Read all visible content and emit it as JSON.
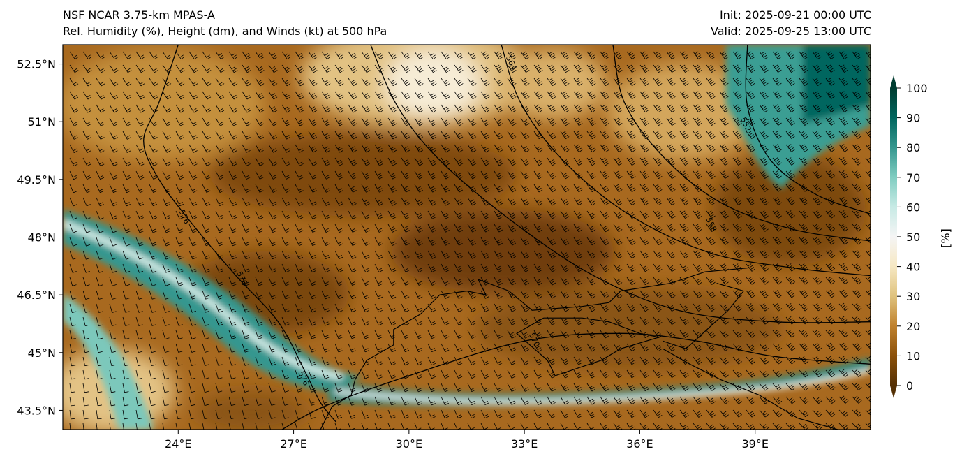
{
  "header": {
    "model": "NSF NCAR 3.75-km MPAS-A",
    "product": "Rel. Humidity (%), Height (dm), and Winds (kt) at 500 hPa",
    "init": "Init: 2025-09-21 00:00 UTC",
    "valid": "Valid: 2025-09-25 13:00 UTC"
  },
  "map": {
    "lon_range": [
      21,
      42
    ],
    "lat_range": [
      43,
      53
    ],
    "lon_ticks": [
      {
        "value": 24,
        "label": "24°E"
      },
      {
        "value": 27,
        "label": "27°E"
      },
      {
        "value": 30,
        "label": "30°E"
      },
      {
        "value": 33,
        "label": "33°E"
      },
      {
        "value": 36,
        "label": "36°E"
      },
      {
        "value": 39,
        "label": "39°E"
      }
    ],
    "lat_ticks": [
      {
        "value": 52.5,
        "label": "52.5°N"
      },
      {
        "value": 51,
        "label": "51°N"
      },
      {
        "value": 49.5,
        "label": "49.5°N"
      },
      {
        "value": 48,
        "label": "48°N"
      },
      {
        "value": 46.5,
        "label": "46.5°N"
      },
      {
        "value": 45,
        "label": "45°N"
      },
      {
        "value": 43.5,
        "label": "43.5°N"
      }
    ],
    "height_contours": [
      {
        "label": "576",
        "points": [
          [
            24,
            53
          ],
          [
            23.5,
            51.5
          ],
          [
            23.1,
            50.5
          ],
          [
            23.5,
            49.5
          ],
          [
            24.4,
            48.3
          ],
          [
            25.5,
            47
          ],
          [
            26.6,
            45.8
          ],
          [
            27.3,
            44.5
          ],
          [
            27.7,
            43.7
          ],
          [
            28.1,
            43.2
          ]
        ],
        "label_at": [
          [
            24.1,
            48.5
          ],
          [
            25.6,
            46.9
          ],
          [
            27.2,
            44.3
          ]
        ]
      },
      {
        "label": "570",
        "points": [
          [
            26.7,
            43
          ],
          [
            27.8,
            43.6
          ],
          [
            30,
            44.4
          ],
          [
            33,
            45.3
          ],
          [
            35.5,
            45.5
          ],
          [
            37.5,
            45.3
          ],
          [
            39.5,
            44.9
          ],
          [
            42,
            44.7
          ]
        ],
        "label_at": [
          [
            33.2,
            45.3
          ]
        ]
      },
      {
        "label": "564",
        "points": [
          [
            29,
            53
          ],
          [
            29.7,
            51.4
          ],
          [
            30.8,
            50
          ],
          [
            32.7,
            48.4
          ],
          [
            34.8,
            47
          ],
          [
            37,
            46.1
          ],
          [
            39.5,
            45.8
          ],
          [
            42,
            45.8
          ]
        ],
        "label_at": []
      },
      {
        "label": "564",
        "points": [
          [
            32.4,
            53
          ],
          [
            32.9,
            51.5
          ],
          [
            34,
            50
          ],
          [
            35.7,
            48.6
          ],
          [
            37.8,
            47.6
          ],
          [
            40,
            47.2
          ],
          [
            42,
            47
          ]
        ],
        "label_at": [
          [
            32.6,
            52.5
          ]
        ]
      },
      {
        "label": "558",
        "points": [
          [
            35.3,
            53
          ],
          [
            35.6,
            51.5
          ],
          [
            36.6,
            50.1
          ],
          [
            38.1,
            48.9
          ],
          [
            40,
            48.2
          ],
          [
            42,
            47.9
          ]
        ],
        "label_at": [
          [
            37.8,
            48.3
          ]
        ]
      },
      {
        "label": "552",
        "points": [
          [
            38.8,
            53
          ],
          [
            38.8,
            51.4
          ],
          [
            39.4,
            50
          ],
          [
            40.6,
            49.1
          ],
          [
            42,
            48.6
          ]
        ],
        "label_at": [
          [
            38.7,
            50.9
          ]
        ]
      }
    ],
    "coastlines": [
      [
        [
          27.7,
          43
        ],
        [
          28,
          43.6
        ],
        [
          28.5,
          43.9
        ],
        [
          28.6,
          44.3
        ],
        [
          28.9,
          44.8
        ],
        [
          29.6,
          45.2
        ],
        [
          29.6,
          45.6
        ],
        [
          30.3,
          46
        ],
        [
          30.8,
          46.5
        ],
        [
          31.5,
          46.6
        ],
        [
          32,
          46.5
        ],
        [
          31.8,
          46.9
        ],
        [
          32.6,
          46.6
        ],
        [
          33.2,
          46.1
        ],
        [
          34.5,
          46.2
        ],
        [
          35.2,
          46.3
        ],
        [
          35.5,
          46.6
        ],
        [
          36.8,
          46.8
        ],
        [
          37.7,
          47.1
        ],
        [
          38.8,
          47.2
        ]
      ],
      [
        [
          33.5,
          45.9
        ],
        [
          32.8,
          45.5
        ],
        [
          33.6,
          44.8
        ],
        [
          33.8,
          44.4
        ],
        [
          35,
          44.8
        ],
        [
          35.5,
          45.1
        ],
        [
          36.5,
          45.4
        ],
        [
          36,
          45.5
        ],
        [
          35.2,
          45.8
        ],
        [
          34.5,
          45.9
        ],
        [
          33.5,
          45.9
        ]
      ],
      [
        [
          36.6,
          45.3
        ],
        [
          37.2,
          45.1
        ],
        [
          38.3,
          46.1
        ],
        [
          38.7,
          46.6
        ],
        [
          38,
          46.8
        ]
      ],
      [
        [
          36.6,
          45.1
        ],
        [
          37.3,
          44.7
        ],
        [
          38.1,
          44.3
        ],
        [
          39.1,
          43.9
        ],
        [
          40.1,
          43.3
        ],
        [
          41.5,
          42.9
        ]
      ]
    ],
    "colorbar": {
      "label": "[%]",
      "ticks": [
        {
          "value": 0,
          "label": "0"
        },
        {
          "value": 10,
          "label": "10"
        },
        {
          "value": 20,
          "label": "20"
        },
        {
          "value": 30,
          "label": "30"
        },
        {
          "value": 40,
          "label": "40"
        },
        {
          "value": 50,
          "label": "50"
        },
        {
          "value": 60,
          "label": "60"
        },
        {
          "value": 70,
          "label": "70"
        },
        {
          "value": 80,
          "label": "80"
        },
        {
          "value": 90,
          "label": "90"
        },
        {
          "value": 100,
          "label": "100"
        }
      ],
      "stops": [
        {
          "v": 0,
          "c": "#543005"
        },
        {
          "v": 10,
          "c": "#8c510a"
        },
        {
          "v": 20,
          "c": "#bf812d"
        },
        {
          "v": 30,
          "c": "#dfc27d"
        },
        {
          "v": 40,
          "c": "#f6e8c3"
        },
        {
          "v": 50,
          "c": "#f5f5f5"
        },
        {
          "v": 60,
          "c": "#c7eae5"
        },
        {
          "v": 70,
          "c": "#80cdc1"
        },
        {
          "v": 80,
          "c": "#35978f"
        },
        {
          "v": 90,
          "c": "#01665e"
        },
        {
          "v": 100,
          "c": "#003c30"
        }
      ]
    }
  }
}
